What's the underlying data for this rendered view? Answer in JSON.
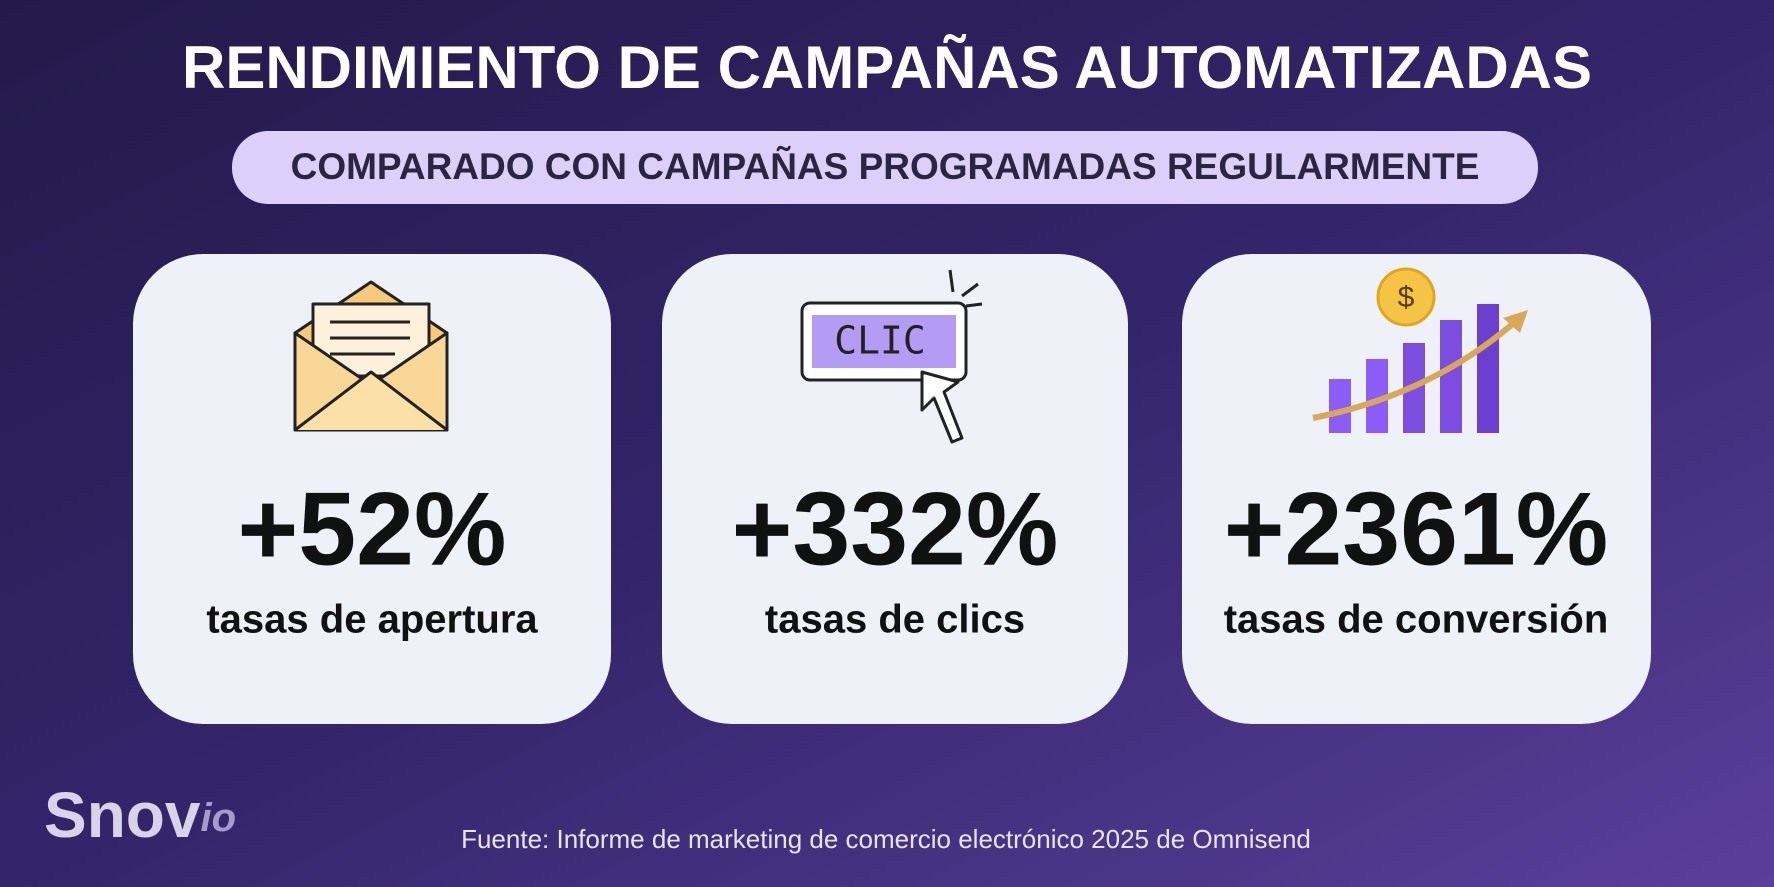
{
  "header": {
    "title": "RENDIMIENTO DE CAMPAÑAS AUTOMATIZADAS",
    "subtitle": "COMPARADO CON CAMPAÑAS PROGRAMADAS REGULARMENTE"
  },
  "cards": [
    {
      "icon_text": null,
      "value": "+52%",
      "label": "tasas de apertura"
    },
    {
      "icon_text": "CLIC",
      "value": "+332%",
      "label": "tasas de clics"
    },
    {
      "icon_text": "$",
      "value": "+2361%",
      "label": "tasas de conversión"
    }
  ],
  "footer": {
    "logo_main": "Snov",
    "logo_suffix": "io",
    "source": "Fuente: Informe de marketing de comercio electrónico 2025 de Omnisend"
  }
}
